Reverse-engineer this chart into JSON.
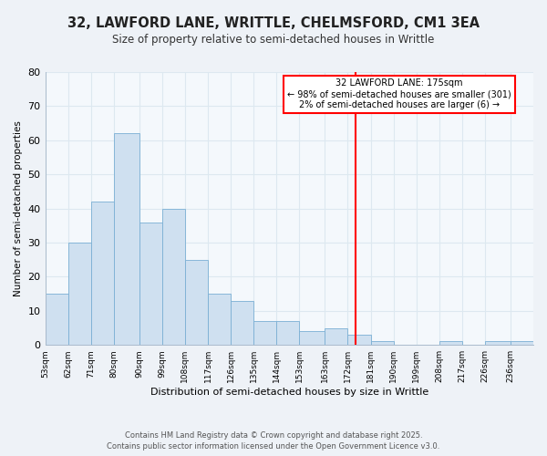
{
  "title": "32, LAWFORD LANE, WRITTLE, CHELMSFORD, CM1 3EA",
  "subtitle": "Size of property relative to semi-detached houses in Writtle",
  "xlabel": "Distribution of semi-detached houses by size in Writtle",
  "ylabel": "Number of semi-detached properties",
  "bin_labels": [
    "53sqm",
    "62sqm",
    "71sqm",
    "80sqm",
    "90sqm",
    "99sqm",
    "108sqm",
    "117sqm",
    "126sqm",
    "135sqm",
    "144sqm",
    "153sqm",
    "163sqm",
    "172sqm",
    "181sqm",
    "190sqm",
    "199sqm",
    "208sqm",
    "217sqm",
    "226sqm",
    "236sqm"
  ],
  "bin_edges": [
    53,
    62,
    71,
    80,
    90,
    99,
    108,
    117,
    126,
    135,
    144,
    153,
    163,
    172,
    181,
    190,
    199,
    208,
    217,
    226,
    236,
    245
  ],
  "counts": [
    15,
    30,
    42,
    62,
    36,
    40,
    25,
    15,
    13,
    7,
    7,
    4,
    5,
    3,
    1,
    0,
    0,
    1,
    0,
    1,
    1
  ],
  "bar_color": "#cfe0f0",
  "bar_edge_color": "#7aafd4",
  "vline_x": 175,
  "vline_color": "red",
  "annotation_title": "32 LAWFORD LANE: 175sqm",
  "annotation_line1": "← 98% of semi-detached houses are smaller (301)",
  "annotation_line2": "2% of semi-detached houses are larger (6) →",
  "ylim": [
    0,
    80
  ],
  "yticks": [
    0,
    10,
    20,
    30,
    40,
    50,
    60,
    70,
    80
  ],
  "footer1": "Contains HM Land Registry data © Crown copyright and database right 2025.",
  "footer2": "Contains public sector information licensed under the Open Government Licence v3.0.",
  "bg_color": "#eef2f7",
  "plot_bg_color": "#f4f8fc",
  "grid_color": "#dde8f0"
}
